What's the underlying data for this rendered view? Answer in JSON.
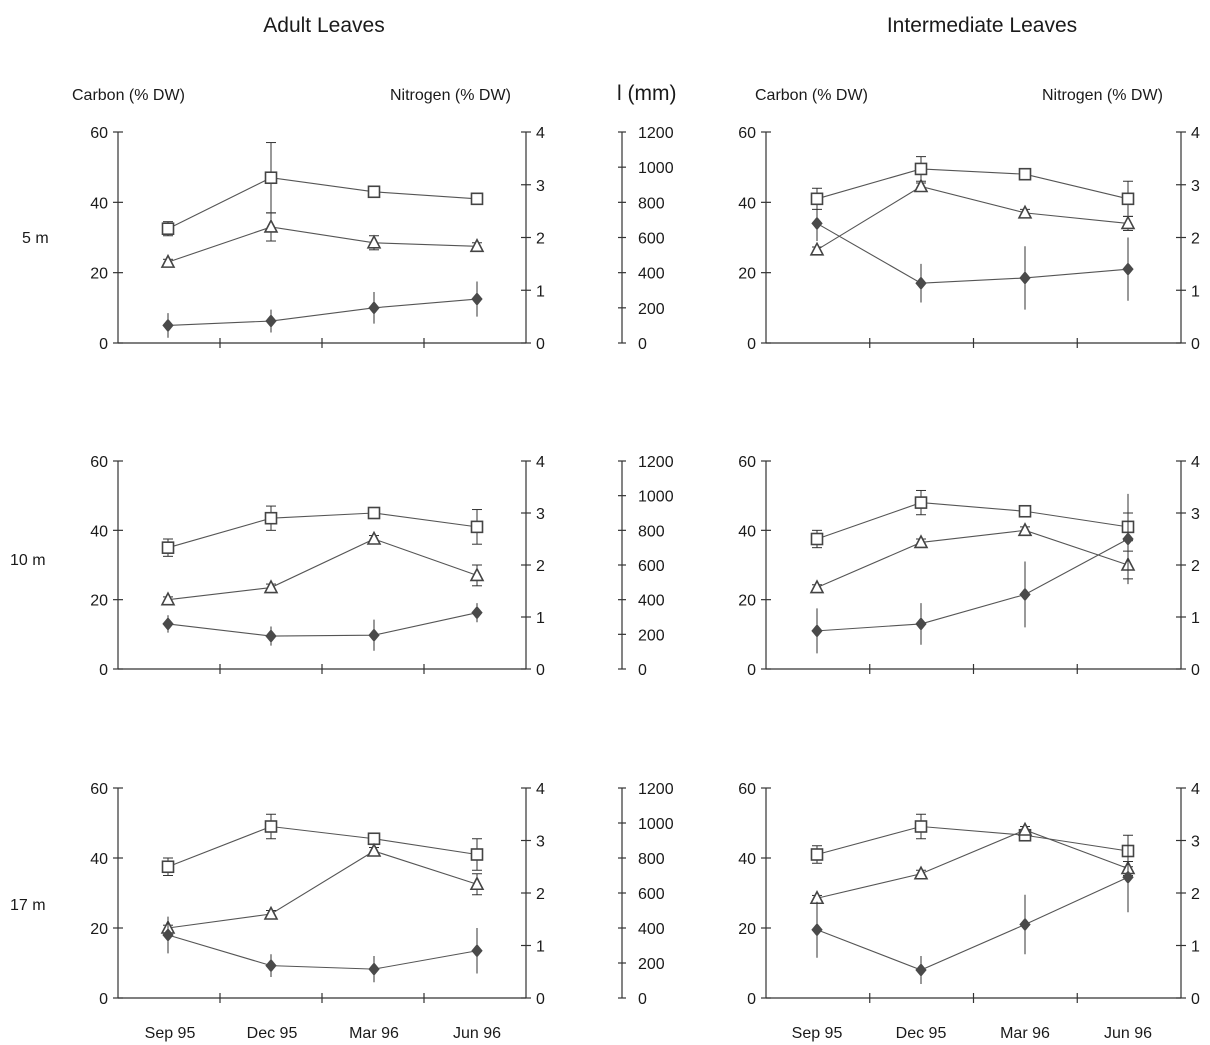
{
  "column_titles": [
    "Adult Leaves",
    "Intermediate Leaves"
  ],
  "left_axis_title": "Carbon (% DW)",
  "right_axis_title": "Nitrogen (% DW)",
  "length_axis_title": "l (mm)",
  "depth_labels": [
    "5  m",
    "10  m",
    "17  m"
  ],
  "left_ticks": [
    "0",
    "20",
    "40",
    "60"
  ],
  "right_ticks": [
    "0",
    "1",
    "2",
    "3",
    "4"
  ],
  "length_ticks": [
    "0",
    "200",
    "400",
    "600",
    "800",
    "1000",
    "1200"
  ],
  "colors": {
    "axis": "#333333",
    "line": "#555555",
    "diamond": "#4a4a4a",
    "square": "#ffffff",
    "triangle": "#ffffff"
  },
  "chart_data": [
    {
      "type": "line",
      "panel": "Adult Leaves, 5 m",
      "categories": [
        "Sep 95",
        "Dec 95",
        "Mar 96",
        "Jun 96"
      ],
      "ylim": [
        0,
        60
      ],
      "y2lim": [
        0,
        4
      ],
      "y3lim": [
        0,
        1200
      ],
      "series": [
        {
          "marker": "square",
          "axis": "left",
          "values": [
            32.5,
            47,
            43,
            41
          ],
          "errors": [
            2,
            10,
            0.8,
            1
          ]
        },
        {
          "marker": "triangle",
          "axis": "left",
          "values": [
            23,
            33,
            28.5,
            27.5
          ],
          "errors": [
            0.8,
            4,
            2,
            1
          ]
        },
        {
          "marker": "diamond",
          "axis": "length",
          "values": [
            100,
            125,
            200,
            250
          ],
          "errors": [
            70,
            65,
            90,
            100
          ]
        }
      ]
    },
    {
      "type": "line",
      "panel": "Intermediate Leaves, 5 m",
      "categories": [
        "Sep 95",
        "Dec 95",
        "Mar 96",
        "Jun 96"
      ],
      "ylim": [
        0,
        60
      ],
      "y2lim": [
        0,
        4
      ],
      "series": [
        {
          "marker": "square",
          "axis": "left",
          "values": [
            41,
            49.5,
            48,
            41
          ],
          "errors": [
            3,
            3.5,
            0.8,
            5
          ]
        },
        {
          "marker": "triangle",
          "axis": "left",
          "values": [
            26.5,
            44.5,
            37,
            34
          ],
          "errors": [
            0.8,
            1,
            1,
            2
          ]
        },
        {
          "marker": "diamond",
          "axis": "left",
          "values": [
            34,
            17,
            18.5,
            21
          ],
          "errors": [
            5,
            5.5,
            9,
            9
          ]
        }
      ]
    },
    {
      "type": "line",
      "panel": "Adult Leaves, 10 m",
      "categories": [
        "Sep 95",
        "Dec 95",
        "Mar 96",
        "Jun 96"
      ],
      "ylim": [
        0,
        60
      ],
      "y2lim": [
        0,
        4
      ],
      "y3lim": [
        0,
        1200
      ],
      "series": [
        {
          "marker": "square",
          "axis": "left",
          "values": [
            35,
            43.5,
            45,
            41
          ],
          "errors": [
            2.5,
            3.5,
            0.8,
            5
          ]
        },
        {
          "marker": "triangle",
          "axis": "left",
          "values": [
            20,
            23.5,
            37.5,
            27
          ],
          "errors": [
            0.8,
            1,
            1,
            3
          ]
        },
        {
          "marker": "diamond",
          "axis": "length",
          "values": [
            260,
            190,
            195,
            325
          ],
          "errors": [
            50,
            55,
            90,
            55
          ]
        }
      ]
    },
    {
      "type": "line",
      "panel": "Intermediate Leaves, 10 m",
      "categories": [
        "Sep 95",
        "Dec 95",
        "Mar 96",
        "Jun 96"
      ],
      "ylim": [
        0,
        60
      ],
      "y2lim": [
        0,
        4
      ],
      "series": [
        {
          "marker": "square",
          "axis": "left",
          "values": [
            37.5,
            48,
            45.5,
            41
          ],
          "errors": [
            2.5,
            3.5,
            0.8,
            4
          ]
        },
        {
          "marker": "triangle",
          "axis": "left",
          "values": [
            23.5,
            36.5,
            40,
            30
          ],
          "errors": [
            0.8,
            1,
            1,
            4
          ]
        },
        {
          "marker": "diamond",
          "axis": "left",
          "values": [
            11,
            13,
            21.5,
            37.5
          ],
          "errors": [
            6.5,
            6,
            9.5,
            13
          ]
        }
      ]
    },
    {
      "type": "line",
      "panel": "Adult Leaves, 17 m",
      "categories": [
        "Sep 95",
        "Dec 95",
        "Mar 96",
        "Jun 96"
      ],
      "ylim": [
        0,
        60
      ],
      "y2lim": [
        0,
        4
      ],
      "y3lim": [
        0,
        1200
      ],
      "series": [
        {
          "marker": "square",
          "axis": "left",
          "values": [
            37.5,
            49,
            45.5,
            41
          ],
          "errors": [
            2.5,
            3.5,
            0.8,
            4.5
          ]
        },
        {
          "marker": "triangle",
          "axis": "left",
          "values": [
            20,
            24,
            42,
            32.5
          ],
          "errors": [
            0.8,
            1,
            1,
            3
          ]
        },
        {
          "marker": "diamond",
          "axis": "length",
          "values": [
            360,
            185,
            165,
            270
          ],
          "errors": [
            105,
            65,
            75,
            130
          ]
        }
      ]
    },
    {
      "type": "line",
      "panel": "Intermediate Leaves, 17 m",
      "categories": [
        "Sep 95",
        "Dec 95",
        "Mar 96",
        "Jun 96"
      ],
      "ylim": [
        0,
        60
      ],
      "y2lim": [
        0,
        4
      ],
      "series": [
        {
          "marker": "square",
          "axis": "left",
          "values": [
            41,
            49,
            46.5,
            42
          ],
          "errors": [
            2.5,
            3.5,
            0.8,
            4.5
          ]
        },
        {
          "marker": "triangle",
          "axis": "left",
          "values": [
            28.5,
            35.5,
            48,
            37
          ],
          "errors": [
            0.8,
            1,
            1,
            2
          ]
        },
        {
          "marker": "diamond",
          "axis": "left",
          "values": [
            19.5,
            8,
            21,
            34.5
          ],
          "errors": [
            8,
            4,
            8.5,
            10
          ]
        }
      ]
    }
  ]
}
